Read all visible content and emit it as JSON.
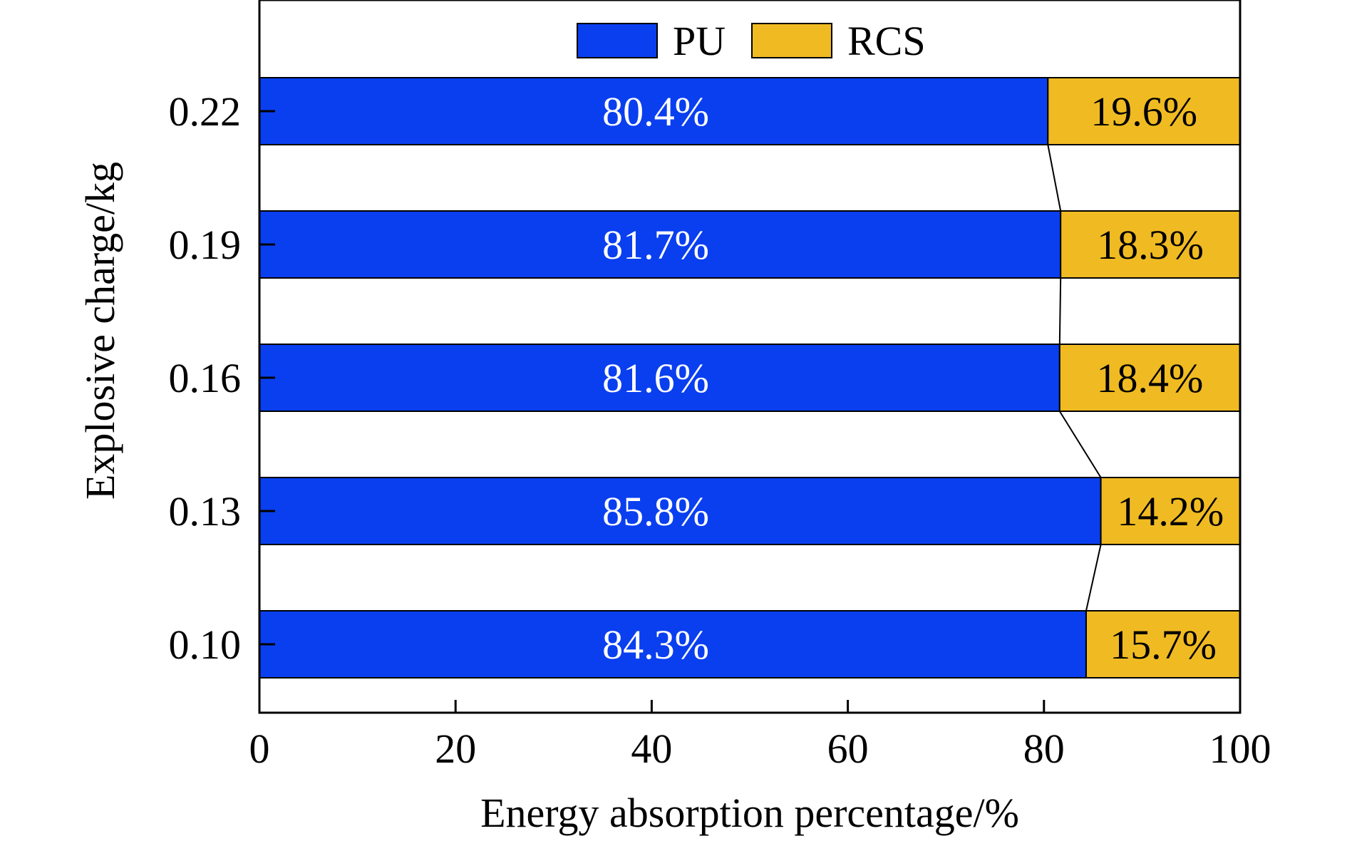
{
  "chart_data": {
    "type": "bar",
    "orientation": "horizontal",
    "stacked": true,
    "title": "",
    "xlabel": "Energy absorption percentage/%",
    "ylabel": "Explosive charge/kg",
    "xlim": [
      0,
      100
    ],
    "xticks": [
      "0",
      "20",
      "40",
      "60",
      "80",
      "100"
    ],
    "categories": [
      "0.10",
      "0.13",
      "0.16",
      "0.19",
      "0.22"
    ],
    "series": [
      {
        "name": "PU",
        "color": "#0a3ff0",
        "values": [
          84.3,
          85.8,
          81.6,
          81.7,
          80.4
        ],
        "labels": [
          "84.3%",
          "85.8%",
          "81.6%",
          "81.7%",
          "80.4%"
        ]
      },
      {
        "name": "RCS",
        "color": "#f0bb22",
        "values": [
          15.7,
          14.2,
          18.4,
          18.3,
          19.6
        ],
        "labels": [
          "15.7%",
          "14.2%",
          "18.4%",
          "18.3%",
          "19.6%"
        ]
      }
    ],
    "connector_lines": true,
    "legend_position": "top-center",
    "grid": false
  }
}
